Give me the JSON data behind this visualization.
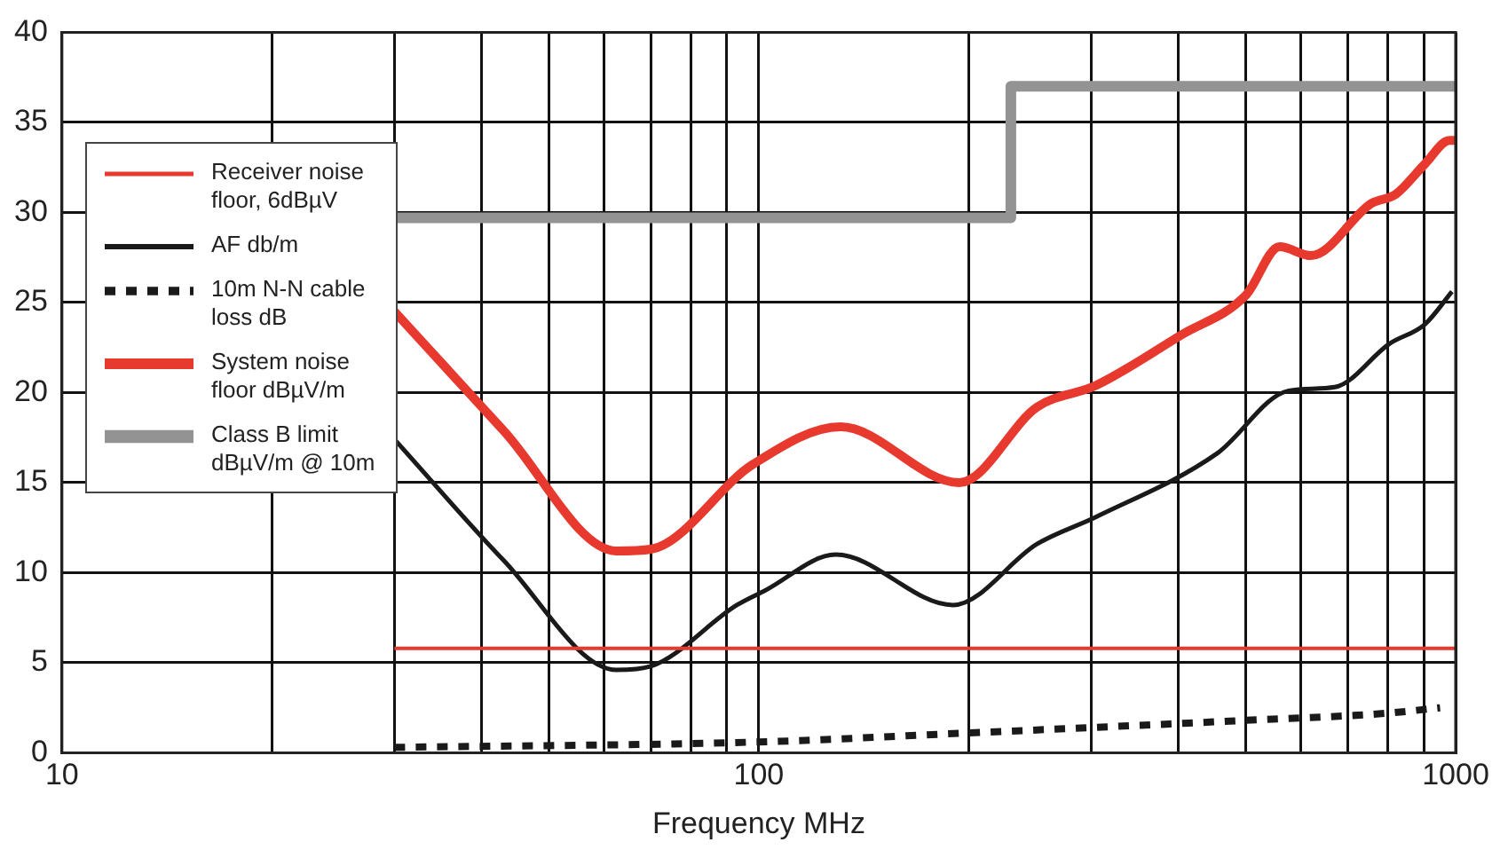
{
  "chart_data": {
    "type": "line",
    "xlabel": "Frequency MHz",
    "log": "x",
    "xlim": [
      10,
      1000
    ],
    "xticks": [
      10,
      {
        "value": 20,
        "label": null
      },
      {
        "value": 30,
        "label": null
      },
      {
        "value": 40,
        "label": null
      },
      {
        "value": 50,
        "label": null
      },
      {
        "value": 60,
        "label": null
      },
      {
        "value": 70,
        "label": null
      },
      {
        "value": 80,
        "label": null
      },
      {
        "value": 90,
        "label": null
      },
      100,
      {
        "value": 200,
        "label": null
      },
      {
        "value": 300,
        "label": null
      },
      {
        "value": 400,
        "label": null
      },
      {
        "value": 500,
        "label": null
      },
      {
        "value": 600,
        "label": null
      },
      {
        "value": 700,
        "label": null
      },
      {
        "value": 800,
        "label": null
      },
      {
        "value": 900,
        "label": null
      },
      1000
    ],
    "ylim": [
      0,
      40
    ],
    "yticks": [
      0,
      5,
      10,
      15,
      20,
      25,
      30,
      35,
      40
    ],
    "grid": true,
    "legend": "left",
    "line_style": "solid",
    "series": [
      {
        "name": "Receiver noise floor, 6dBµV",
        "color": "#e8392f",
        "x": [
          30,
          1000
        ],
        "values": [
          5.8,
          5.8
        ]
      },
      {
        "name": "AF db/m",
        "color": "#1a1a1a",
        "x": [
          30,
          43,
          62.5,
          70,
          93,
          102,
          129,
          190,
          251,
          305,
          454,
          576,
          671,
          803,
          904,
          988
        ],
        "values": [
          17.4,
          10.7,
          4.6,
          4.8,
          8.2,
          9.0,
          11.0,
          8.2,
          11.6,
          13.1,
          16.6,
          20.1,
          20.3,
          22.7,
          23.8,
          25.6
        ]
      },
      {
        "name": "10m N-N cable loss dB",
        "color": "#1a1a1a",
        "line_style": "dotted",
        "x": [
          30,
          100,
          200,
          300,
          500,
          800,
          950
        ],
        "values": [
          0.3,
          0.6,
          1.1,
          1.4,
          1.8,
          2.2,
          2.5
        ]
      },
      {
        "name": "System noise floor dBµV/m",
        "color": "#e8392f",
        "x": [
          30,
          43,
          62.5,
          70,
          98,
          131,
          194,
          251,
          305,
          404,
          500,
          559,
          620,
          757,
          820,
          904,
          980,
          1000
        ],
        "values": [
          24.5,
          17.9,
          11.2,
          11.3,
          16.0,
          18.1,
          15.0,
          19.2,
          20.4,
          23.2,
          25.4,
          28.1,
          27.6,
          30.5,
          31.0,
          32.7,
          34.0,
          34.0
        ]
      },
      {
        "name": "Class B limit dBµV/m @ 10m",
        "color": "#939393",
        "type": "step",
        "x": [
          30,
          230,
          1000
        ],
        "values": [
          29.7,
          37,
          37
        ]
      }
    ]
  }
}
